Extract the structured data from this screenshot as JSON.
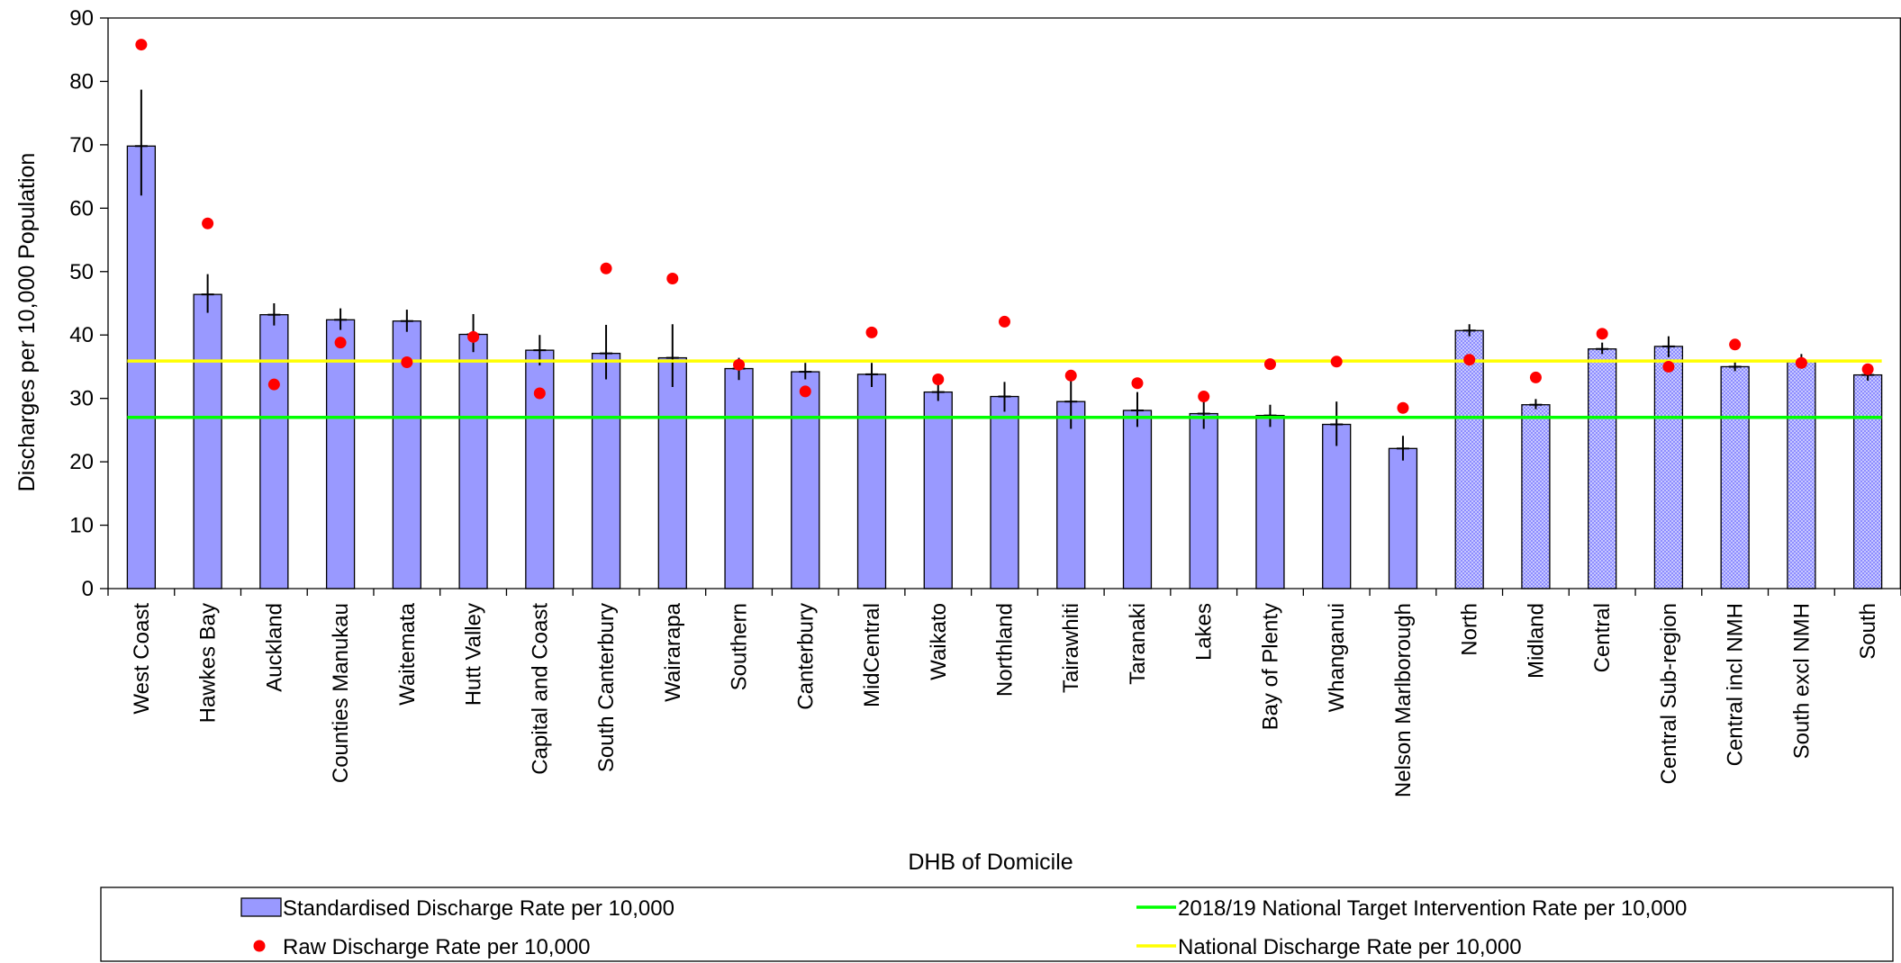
{
  "chart_data": {
    "type": "bar",
    "xlabel": "DHB of Domicile",
    "ylabel": "Discharges per 10,000 Population",
    "ylim": [
      0,
      90
    ],
    "yticks": [
      0,
      10,
      20,
      30,
      40,
      50,
      60,
      70,
      80,
      90
    ],
    "grid": false,
    "legend_position": "bottom",
    "categories": [
      "West Coast",
      "Hawkes Bay",
      "Auckland",
      "Counties Manukau",
      "Waitemata",
      "Hutt Valley",
      "Capital and Coast",
      "South Canterbury",
      "Wairarapa",
      "Southern",
      "Canterbury",
      "MidCentral",
      "Waikato",
      "Northland",
      "Tairawhiti",
      "Taranaki",
      "Lakes",
      "Bay of Plenty",
      "Whanganui",
      "Nelson Marlborough",
      "North",
      "Midland",
      "Central",
      "Central Sub-region",
      "Central incl NMH",
      "South excl NMH",
      "South"
    ],
    "bar_style": [
      "solid",
      "solid",
      "solid",
      "solid",
      "solid",
      "solid",
      "solid",
      "solid",
      "solid",
      "solid",
      "solid",
      "solid",
      "solid",
      "solid",
      "solid",
      "solid",
      "solid",
      "solid",
      "solid",
      "solid",
      "hatched",
      "hatched",
      "hatched",
      "hatched",
      "hatched",
      "hatched",
      "hatched"
    ],
    "series": [
      {
        "name": "Standardised Discharge Rate per 10,000",
        "kind": "bar",
        "color": "#9999ff",
        "values": [
          69.8,
          46.4,
          43.2,
          42.4,
          42.2,
          40.1,
          37.6,
          37.1,
          36.4,
          34.7,
          34.2,
          33.8,
          31.0,
          30.3,
          29.5,
          28.1,
          27.6,
          27.3,
          25.9,
          22.1,
          40.7,
          29.0,
          37.8,
          38.2,
          35.0,
          35.8,
          33.7
        ],
        "error_low": [
          62.0,
          43.5,
          41.5,
          40.8,
          40.5,
          37.3,
          35.2,
          33.0,
          31.8,
          32.9,
          33.0,
          31.8,
          29.6,
          27.9,
          25.2,
          25.5,
          25.2,
          25.5,
          22.5,
          20.2,
          39.8,
          28.3,
          37.0,
          36.5,
          34.3,
          34.7,
          32.8
        ],
        "error_high": [
          78.7,
          49.6,
          45.0,
          44.2,
          44.0,
          43.3,
          40.0,
          41.6,
          41.7,
          36.4,
          35.6,
          35.6,
          32.4,
          32.6,
          33.0,
          31.0,
          30.0,
          29.0,
          29.5,
          24.1,
          41.7,
          29.9,
          38.8,
          39.8,
          36.0,
          37.0,
          34.7
        ]
      },
      {
        "name": "Raw Discharge Rate per 10,000",
        "kind": "scatter",
        "color": "#ff0000",
        "values": [
          85.8,
          57.6,
          32.2,
          38.8,
          35.7,
          39.7,
          30.8,
          50.5,
          48.9,
          35.3,
          31.1,
          40.4,
          33.0,
          42.1,
          33.6,
          32.4,
          30.3,
          35.4,
          35.8,
          28.5,
          36.1,
          33.3,
          40.2,
          35.0,
          38.5,
          35.6,
          34.6
        ]
      },
      {
        "name": "2018/19 National Target Intervention Rate per 10,000",
        "kind": "line",
        "color": "#00ff00",
        "value": 27.0
      },
      {
        "name": "National Discharge Rate per 10,000",
        "kind": "line",
        "color": "#ffff00",
        "value": 35.9
      }
    ]
  }
}
